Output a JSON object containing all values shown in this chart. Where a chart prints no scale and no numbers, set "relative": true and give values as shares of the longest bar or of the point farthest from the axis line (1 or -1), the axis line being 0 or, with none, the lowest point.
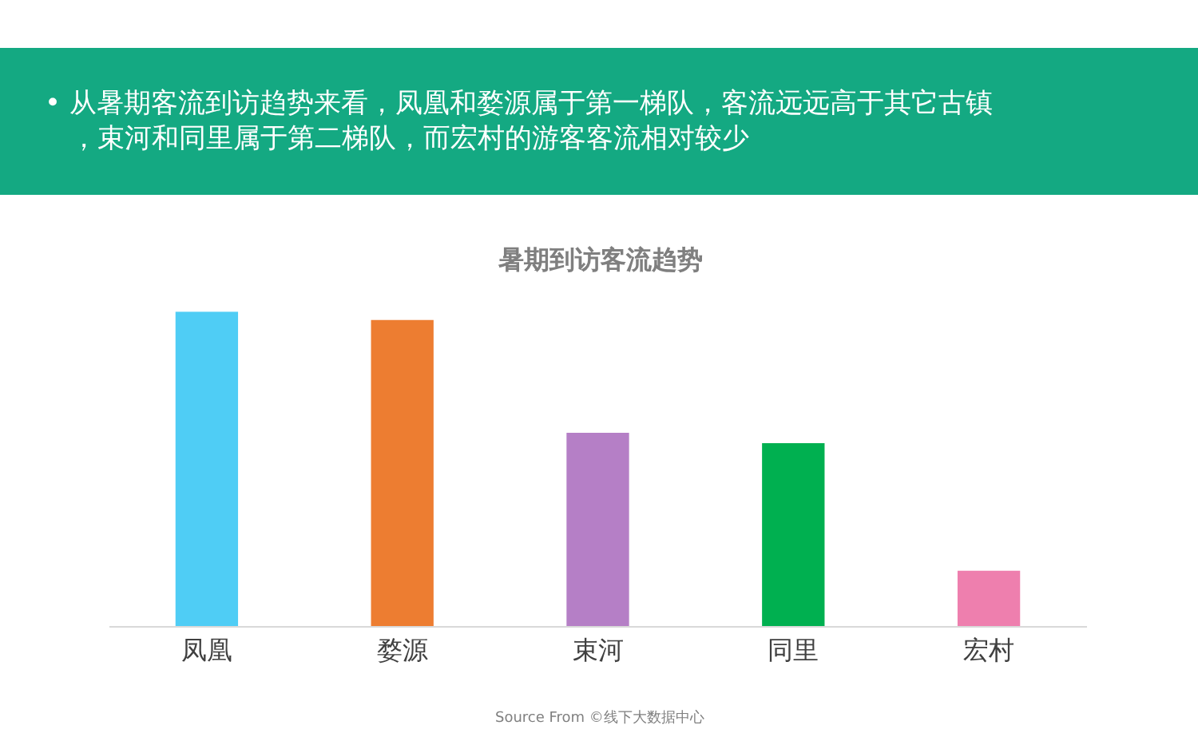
{
  "chart_data": {
    "type": "bar",
    "title": "• 从暑期客流到访趋势来看，凤凰和婺源属于第一梯队，客流远远高于其它古镇，束河和同里属于第二梯队，而宏村的游客客流相对较少",
    "subtitle": "暑期到访客流趋势",
    "categories": [
      "凤凰",
      "婺源",
      "束河",
      "同里",
      "宏村"
    ],
    "values": [
      1,
      0.973,
      0.615,
      0.582,
      0.176
    ],
    "colors": [
      "#4fcdf5",
      "#ed7d31",
      "#b57fc6",
      "#00b050",
      "#ee7fae"
    ],
    "relative": true,
    "annotations": [
      "Source From ©线下大数据中心"
    ]
  }
}
